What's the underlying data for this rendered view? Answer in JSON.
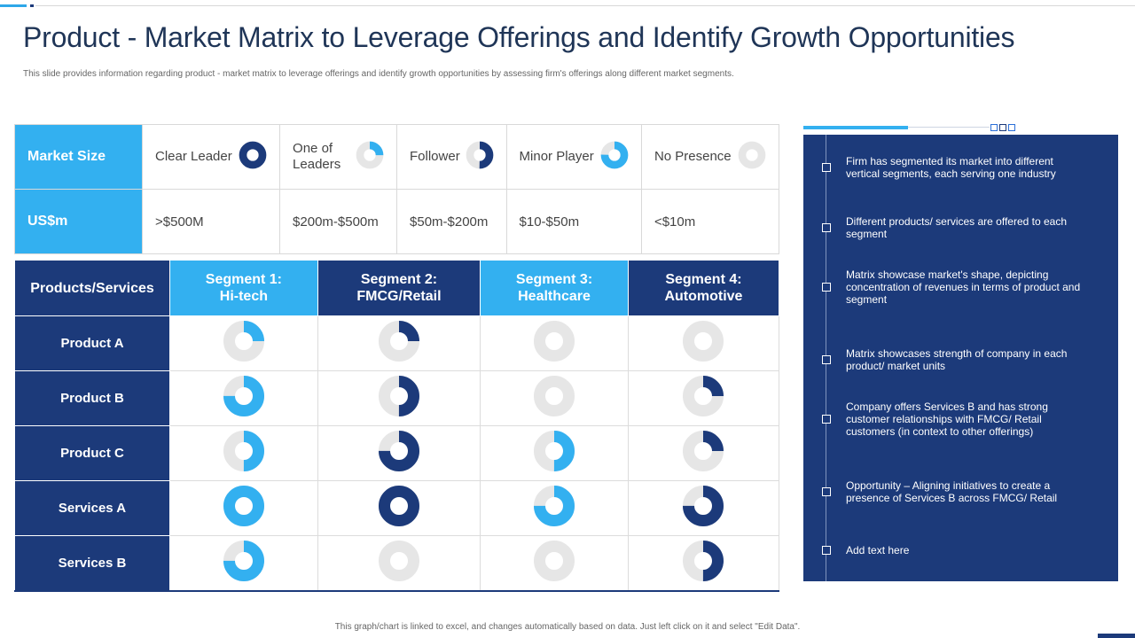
{
  "title": "Product - Market Matrix to Leverage Offerings and Identify Growth Opportunities",
  "subtitle": "This slide provides information regarding product - market matrix to leverage offerings and identify growth opportunities by assessing firm's offerings along different market segments.",
  "colors": {
    "dark": "#1c3a7a",
    "light": "#33b0f0",
    "empty": "#e6e6e6"
  },
  "legend": {
    "header_size": "Market Size",
    "header_money": "US$m",
    "items": [
      {
        "label": "Clear Leader",
        "range": ">$500M",
        "fill": 1.0,
        "tone": "dark",
        "icon": "donut-full-icon"
      },
      {
        "label": "One of\nLeaders",
        "range": "$200m-$500m",
        "fill": 0.25,
        "tone": "light",
        "icon": "donut-quarter-icon"
      },
      {
        "label": "Follower",
        "range": "$50m-$200m",
        "fill": 0.5,
        "tone": "dark",
        "icon": "donut-half-icon"
      },
      {
        "label": "Minor Player",
        "range": "$10-$50m",
        "fill": 0.75,
        "tone": "light",
        "icon": "donut-three-quarter-icon"
      },
      {
        "label": "No Presence",
        "range": "<$10m",
        "fill": 0,
        "tone": "none",
        "icon": "donut-empty-icon"
      }
    ]
  },
  "matrix": {
    "corner": "Products/Services",
    "segments": [
      {
        "line1": "Segment 1:",
        "line2": "Hi-tech",
        "tone": "light"
      },
      {
        "line1": "Segment 2:",
        "line2": "FMCG/Retail",
        "tone": "dark"
      },
      {
        "line1": "Segment 3:",
        "line2": "Healthcare",
        "tone": "light"
      },
      {
        "line1": "Segment 4:",
        "line2": "Automotive",
        "tone": "dark"
      }
    ],
    "rows": [
      {
        "name": "Product A",
        "cells": [
          0.25,
          0.25,
          0,
          0
        ]
      },
      {
        "name": "Product B",
        "cells": [
          0.75,
          0.5,
          0,
          0.25
        ]
      },
      {
        "name": "Product C",
        "cells": [
          0.5,
          0.75,
          0.5,
          0.25
        ]
      },
      {
        "name": "Services A",
        "cells": [
          1.0,
          1.0,
          0.75,
          0.75
        ]
      },
      {
        "name": "Services B",
        "cells": [
          0.75,
          0,
          0,
          0.5
        ]
      }
    ]
  },
  "panel": {
    "items": [
      "Firm has segmented its market into different vertical segments, each serving one industry",
      "Different products/ services are offered to each segment",
      "Matrix showcase market's shape, depicting concentration of revenues in terms of product and segment",
      "Matrix showcases strength of company in each product/ market units",
      "Company offers Services B and has strong customer relationships with FMCG/ Retail customers (in context to other offerings)",
      "Opportunity – Aligning initiatives to create a presence of Services B across FMCG/ Retail",
      "Add text here"
    ]
  },
  "footer": "This graph/chart is linked to excel, and changes automatically based on data. Just left click on it and select \"Edit Data\"."
}
